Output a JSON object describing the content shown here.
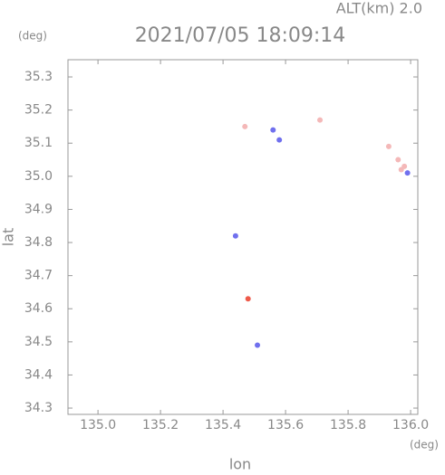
{
  "chart_data": {
    "type": "scatter",
    "title": "2021/07/05 18:09:14",
    "altitude_label": "ALT(km) 2.0",
    "y_unit": "(deg)",
    "x_unit": "(deg)",
    "xlabel": "lon",
    "ylabel": "lat",
    "xlim": [
      134.904,
      136.023
    ],
    "ylim": [
      34.281,
      35.352
    ],
    "xticks": [
      {
        "value": 135,
        "label": "135.0"
      },
      135.2,
      135.4,
      135.6,
      135.8,
      {
        "value": 136,
        "label": "136.0"
      }
    ],
    "yticks": [
      35.3,
      35.2,
      35.1,
      {
        "value": 35,
        "label": "35.0"
      },
      34.9,
      34.8,
      34.7,
      34.6,
      34.5,
      34.4,
      34.3
    ],
    "series": [
      {
        "color": "#f4b8b8",
        "x": [
          135.47,
          135.71,
          135.93,
          135.96,
          135.97,
          135.98
        ],
        "values": [
          35.15,
          35.17,
          35.09,
          35.05,
          35.02,
          35.03
        ]
      },
      {
        "color": "#7070ee",
        "x": [
          135.56,
          135.58,
          135.44,
          135.51,
          135.99
        ],
        "values": [
          35.14,
          35.11,
          34.82,
          34.49,
          35.01
        ]
      },
      {
        "color": "#ee5a4a",
        "x": [
          135.48
        ],
        "values": [
          34.63
        ]
      }
    ]
  }
}
